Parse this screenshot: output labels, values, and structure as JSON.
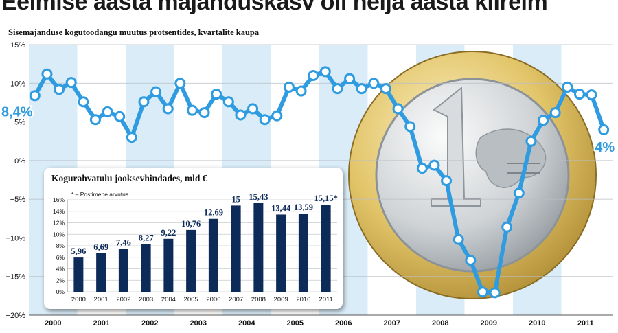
{
  "headline": "Eelmise aasta majanduskasv oli neljа aasta kiireim",
  "chart_data": [
    {
      "type": "line",
      "title": "Sisemajanduse kogutoodangu muutus protsentides, kvartalite kaupa",
      "ylim": [
        -20,
        15
      ],
      "y_ticks": [
        "15%",
        "10%",
        "5%",
        "0%",
        "−5%",
        "−10%",
        "−15%",
        "−20%"
      ],
      "y_tick_values": [
        15,
        10,
        5,
        0,
        -5,
        -10,
        -15,
        -20
      ],
      "x_tick_labels": [
        "2000",
        "2001",
        "2002",
        "2003",
        "2004",
        "2005",
        "2006",
        "2007",
        "2008",
        "2009",
        "2010",
        "2011"
      ],
      "series": [
        {
          "values": [
            8.4,
            11.2,
            9.2,
            10.1,
            7.6,
            5.3,
            6.3,
            5.7,
            3.0,
            7.6,
            8.9,
            6.7,
            10.0,
            6.5,
            6.2,
            8.6,
            7.6,
            5.9,
            6.7,
            5.3,
            5.8,
            9.5,
            9.0,
            11.0,
            11.5,
            9.3,
            10.6,
            9.3,
            10.0,
            9.3,
            6.7,
            4.4,
            -1.0,
            -0.6,
            -2.6,
            -10.2,
            -12.9,
            -17.0,
            -17.1,
            -8.6,
            -4.2,
            2.5,
            5.2,
            6.2,
            9.5,
            8.6,
            8.5,
            4.0
          ],
          "quarters_per_year": 4,
          "first_year": 2000
        }
      ],
      "annotations": [
        {
          "text": "8,4%",
          "at_index": 0
        },
        {
          "text": "4%",
          "at_index": 47
        }
      ],
      "grid": true,
      "colors": {
        "line": "#2f9be0",
        "band": "#d9ecf8",
        "grid": "#b9bec3",
        "text": "#111111"
      }
    },
    {
      "type": "bar",
      "title": "Kogurahvatulu jooksevhindades, mld €",
      "note": "* – Postimehe arvutus",
      "categories": [
        "2000",
        "2001",
        "2002",
        "2003",
        "2004",
        "2005",
        "2006",
        "2007",
        "2008",
        "2009",
        "2010",
        "2011"
      ],
      "values": [
        5.96,
        6.69,
        7.46,
        8.27,
        9.22,
        10.76,
        12.69,
        15,
        15.43,
        13.44,
        13.59,
        15.15
      ],
      "value_labels": [
        "5,96",
        "6,69",
        "7,46",
        "8,27",
        "9,22",
        "10,76",
        "12,69",
        "15",
        "15,43",
        "13,44",
        "13,59",
        "15,15*"
      ],
      "ylim": [
        0,
        16
      ],
      "y_ticks": [
        "0%",
        "2%",
        "4%",
        "6%",
        "8%",
        "10%",
        "12%",
        "14%",
        "16%"
      ],
      "y_tick_values": [
        0,
        2,
        4,
        6,
        8,
        10,
        12,
        14,
        16
      ],
      "colors": {
        "bar": "#0d2b59",
        "grid": "#c8ccd0"
      }
    }
  ]
}
